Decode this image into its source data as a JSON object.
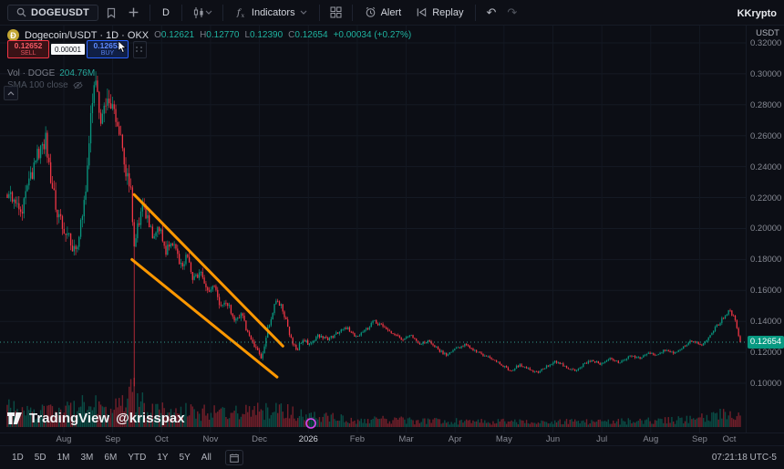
{
  "topbar": {
    "symbol": "DOGEUSDT",
    "interval": "D",
    "indicators_label": "Indicators",
    "alert_label": "Alert",
    "replay_label": "Replay",
    "user": "KKrypto"
  },
  "legend": {
    "title": "Dogecoin/USDT · 1D · OKX",
    "ohlc": {
      "o_label": "O",
      "o_value": "0.12621",
      "h_label": "H",
      "h_value": "0.12770",
      "l_label": "L",
      "l_value": "0.12390",
      "c_label": "C",
      "c_value": "0.12654",
      "change": "+0.00034 (+0.27%)"
    },
    "volume_label": "Vol · DOGE",
    "volume_value": "204.76M",
    "sma_label": "SMA 100 close"
  },
  "trade_widget": {
    "sell_price": "0.12652",
    "sell_label": "SELL",
    "spread": "0.00001",
    "buy_price": "0.12653",
    "buy_label": "BUY"
  },
  "watermark": {
    "brand": "TradingView",
    "handle": "@krisspax"
  },
  "price_axis": {
    "unit": "USDT",
    "labels": [
      "0.32000",
      "0.30000",
      "0.28000",
      "0.26000",
      "0.24000",
      "0.22000",
      "0.20000",
      "0.18000",
      "0.16000",
      "0.14000",
      "0.12000",
      "0.10000"
    ],
    "current": "0.12654"
  },
  "time_axis": {
    "labels": [
      "Aug",
      "Sep",
      "Oct",
      "Nov",
      "Dec",
      "2026",
      "Feb",
      "Mar",
      "Apr",
      "May",
      "Jun",
      "Jul",
      "Aug",
      "Sep",
      "Oct"
    ]
  },
  "bottombar": {
    "ranges": [
      "1D",
      "5D",
      "1M",
      "3M",
      "6M",
      "YTD",
      "1Y",
      "5Y",
      "All"
    ],
    "clock": "07:21:18 UTC-5"
  },
  "colors": {
    "up": "#089981",
    "down": "#f23645",
    "trendline": "#ff9800",
    "accent_blue": "#2962ff",
    "axis_text": "#868993",
    "current_line": "#3cbeaa",
    "marker_purple": "#d946ef"
  },
  "chart_data": {
    "type": "candlestick",
    "symbol": "DOGEUSDT",
    "interval": "1D",
    "exchange": "OKX",
    "current_price": 0.12654,
    "axis": {
      "price_top": 0.32,
      "price_bottom": 0.1,
      "tick_step": 0.02
    },
    "candle_count": 440,
    "price_path_anchors": [
      [
        0.0,
        0.222
      ],
      [
        0.02,
        0.213
      ],
      [
        0.04,
        0.247
      ],
      [
        0.052,
        0.258
      ],
      [
        0.067,
        0.21
      ],
      [
        0.08,
        0.196
      ],
      [
        0.096,
        0.184
      ],
      [
        0.108,
        0.232
      ],
      [
        0.118,
        0.296
      ],
      [
        0.129,
        0.268
      ],
      [
        0.139,
        0.284
      ],
      [
        0.149,
        0.272
      ],
      [
        0.158,
        0.246
      ],
      [
        0.168,
        0.225
      ],
      [
        0.173,
        0.192
      ],
      [
        0.179,
        0.206
      ],
      [
        0.187,
        0.214
      ],
      [
        0.199,
        0.196
      ],
      [
        0.208,
        0.201
      ],
      [
        0.216,
        0.186
      ],
      [
        0.226,
        0.191
      ],
      [
        0.236,
        0.176
      ],
      [
        0.245,
        0.181
      ],
      [
        0.254,
        0.167
      ],
      [
        0.264,
        0.172
      ],
      [
        0.274,
        0.157
      ],
      [
        0.282,
        0.162
      ],
      [
        0.291,
        0.15
      ],
      [
        0.301,
        0.152
      ],
      [
        0.311,
        0.14
      ],
      [
        0.32,
        0.146
      ],
      [
        0.328,
        0.132
      ],
      [
        0.338,
        0.122
      ],
      [
        0.347,
        0.117
      ],
      [
        0.357,
        0.138
      ],
      [
        0.367,
        0.155
      ],
      [
        0.376,
        0.148
      ],
      [
        0.386,
        0.13
      ],
      [
        0.394,
        0.121
      ],
      [
        0.403,
        0.128
      ],
      [
        0.413,
        0.125
      ],
      [
        0.425,
        0.131
      ],
      [
        0.438,
        0.128
      ],
      [
        0.45,
        0.133
      ],
      [
        0.463,
        0.136
      ],
      [
        0.475,
        0.13
      ],
      [
        0.488,
        0.134
      ],
      [
        0.5,
        0.14
      ],
      [
        0.512,
        0.137
      ],
      [
        0.525,
        0.133
      ],
      [
        0.537,
        0.128
      ],
      [
        0.55,
        0.131
      ],
      [
        0.562,
        0.125
      ],
      [
        0.575,
        0.128
      ],
      [
        0.587,
        0.122
      ],
      [
        0.6,
        0.118
      ],
      [
        0.612,
        0.122
      ],
      [
        0.624,
        0.125
      ],
      [
        0.637,
        0.121
      ],
      [
        0.65,
        0.118
      ],
      [
        0.662,
        0.116
      ],
      [
        0.674,
        0.112
      ],
      [
        0.687,
        0.108
      ],
      [
        0.699,
        0.112
      ],
      [
        0.711,
        0.109
      ],
      [
        0.724,
        0.107
      ],
      [
        0.736,
        0.111
      ],
      [
        0.749,
        0.114
      ],
      [
        0.761,
        0.111
      ],
      [
        0.774,
        0.108
      ],
      [
        0.786,
        0.112
      ],
      [
        0.798,
        0.115
      ],
      [
        0.811,
        0.112
      ],
      [
        0.823,
        0.116
      ],
      [
        0.836,
        0.113
      ],
      [
        0.848,
        0.118
      ],
      [
        0.861,
        0.116
      ],
      [
        0.873,
        0.12
      ],
      [
        0.886,
        0.118
      ],
      [
        0.898,
        0.122
      ],
      [
        0.91,
        0.119
      ],
      [
        0.923,
        0.124
      ],
      [
        0.935,
        0.128
      ],
      [
        0.948,
        0.125
      ],
      [
        0.96,
        0.132
      ],
      [
        0.973,
        0.14
      ],
      [
        0.985,
        0.147
      ],
      [
        0.993,
        0.142
      ],
      [
        1.0,
        0.1265
      ]
    ],
    "volatility_anchors": [
      [
        0,
        0.05
      ],
      [
        0.17,
        0.055
      ],
      [
        0.2,
        0.04
      ],
      [
        0.3,
        0.034
      ],
      [
        0.38,
        0.028
      ],
      [
        0.45,
        0.02
      ],
      [
        0.6,
        0.016
      ],
      [
        1,
        0.018
      ]
    ],
    "volume_anchors": [
      [
        0,
        0.5
      ],
      [
        0.06,
        0.42
      ],
      [
        0.11,
        0.62
      ],
      [
        0.15,
        0.5
      ],
      [
        0.173,
        1.0
      ],
      [
        0.19,
        0.55
      ],
      [
        0.25,
        0.42
      ],
      [
        0.3,
        0.38
      ],
      [
        0.37,
        0.48
      ],
      [
        0.41,
        0.3
      ],
      [
        0.47,
        0.22
      ],
      [
        0.55,
        0.18
      ],
      [
        0.65,
        0.15
      ],
      [
        0.75,
        0.14
      ],
      [
        0.85,
        0.16
      ],
      [
        0.93,
        0.2
      ],
      [
        0.97,
        0.34
      ],
      [
        1,
        0.26
      ]
    ],
    "flash_crash": {
      "t": 0.173,
      "wick_low": 0.098
    },
    "trendlines": [
      {
        "from": [
          0.173,
          0.222
        ],
        "to": [
          0.376,
          0.124
        ]
      },
      {
        "from": [
          0.17,
          0.18
        ],
        "to": [
          0.368,
          0.104
        ]
      }
    ]
  }
}
